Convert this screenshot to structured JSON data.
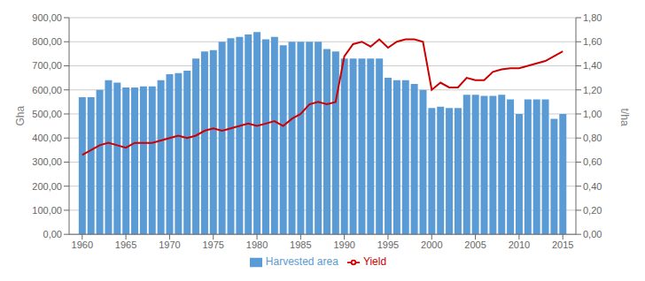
{
  "chart_data": {
    "type": "bar",
    "x": [
      1960,
      1961,
      1962,
      1963,
      1964,
      1965,
      1966,
      1967,
      1968,
      1969,
      1970,
      1971,
      1972,
      1973,
      1974,
      1975,
      1976,
      1977,
      1978,
      1979,
      1980,
      1981,
      1982,
      1983,
      1984,
      1985,
      1986,
      1987,
      1988,
      1989,
      1990,
      1991,
      1992,
      1993,
      1994,
      1995,
      1996,
      1997,
      1998,
      1999,
      2000,
      2001,
      2002,
      2003,
      2004,
      2005,
      2006,
      2007,
      2008,
      2009,
      2010,
      2011,
      2012,
      2013,
      2014,
      2015
    ],
    "series": [
      {
        "name": "Harvested area",
        "type": "bar",
        "color": "#5b9bd5",
        "values": [
          570,
          570,
          600,
          640,
          630,
          610,
          610,
          615,
          615,
          640,
          665,
          670,
          680,
          730,
          760,
          765,
          800,
          815,
          820,
          830,
          840,
          810,
          820,
          785,
          800,
          800,
          800,
          800,
          770,
          760,
          730,
          730,
          730,
          730,
          730,
          650,
          640,
          640,
          625,
          600,
          525,
          530,
          525,
          525,
          580,
          580,
          575,
          575,
          580,
          560,
          500,
          560,
          560,
          560,
          480,
          500
        ]
      },
      {
        "name": "Yield",
        "type": "line",
        "color": "#cc0000",
        "axis": "y2",
        "values": [
          0.66,
          0.7,
          0.74,
          0.76,
          0.74,
          0.72,
          0.76,
          0.76,
          0.76,
          0.78,
          0.8,
          0.82,
          0.8,
          0.82,
          0.86,
          0.88,
          0.86,
          0.88,
          0.9,
          0.92,
          0.9,
          0.92,
          0.94,
          0.9,
          0.96,
          1.0,
          1.08,
          1.1,
          1.08,
          1.1,
          1.48,
          1.58,
          1.6,
          1.56,
          1.62,
          1.55,
          1.6,
          1.62,
          1.62,
          1.6,
          1.2,
          1.26,
          1.22,
          1.22,
          1.3,
          1.28,
          1.28,
          1.35,
          1.37,
          1.38,
          1.38,
          1.4,
          1.42,
          1.44,
          1.48,
          1.52
        ]
      }
    ],
    "ylabel": "Gha",
    "y2label": "t/ha",
    "xlim": [
      1958.5,
      2016.5
    ],
    "xticks": [
      1960,
      1965,
      1970,
      1975,
      1980,
      1985,
      1990,
      1995,
      2000,
      2005,
      2010,
      2015
    ],
    "ylim": [
      0,
      900
    ],
    "yticks": [
      {
        "value": 0,
        "label": "0,00"
      },
      {
        "value": 100,
        "label": "100,00"
      },
      {
        "value": 200,
        "label": "200,00"
      },
      {
        "value": 300,
        "label": "300,00"
      },
      {
        "value": 400,
        "label": "400,00"
      },
      {
        "value": 500,
        "label": "500,00"
      },
      {
        "value": 600,
        "label": "600,00"
      },
      {
        "value": 700,
        "label": "700,00"
      },
      {
        "value": 800,
        "label": "800,00"
      },
      {
        "value": 900,
        "label": "900,00"
      }
    ],
    "y2lim": [
      0,
      1.8
    ],
    "y2ticks": [
      {
        "value": 0.0,
        "label": "0,00"
      },
      {
        "value": 0.2,
        "label": "0,20"
      },
      {
        "value": 0.4,
        "label": "0,40"
      },
      {
        "value": 0.6,
        "label": "0,60"
      },
      {
        "value": 0.8,
        "label": "0,80"
      },
      {
        "value": 1.0,
        "label": "1,00"
      },
      {
        "value": 1.2,
        "label": "1,20"
      },
      {
        "value": 1.4,
        "label": "1,40"
      },
      {
        "value": 1.6,
        "label": "1,60"
      },
      {
        "value": 1.8,
        "label": "1,80"
      }
    ],
    "grid": true,
    "legend": "bottom"
  }
}
